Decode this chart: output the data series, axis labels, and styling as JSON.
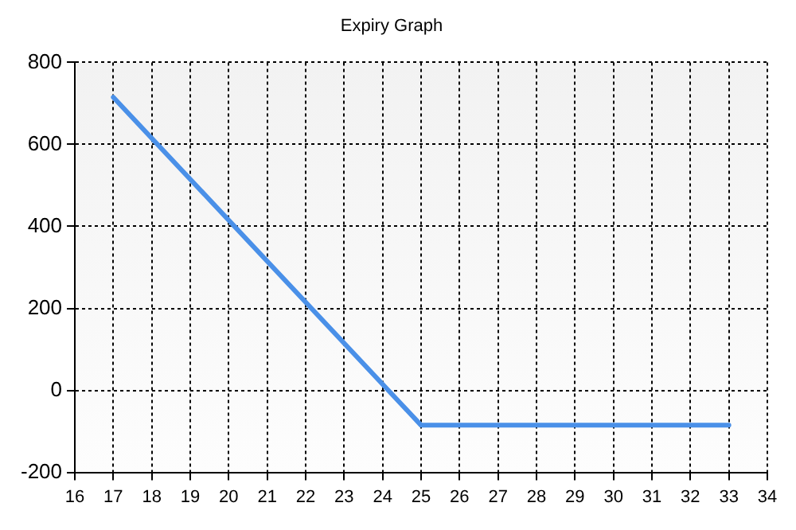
{
  "chart_data": {
    "type": "line",
    "title": "Expiry Graph",
    "x": [
      17,
      25,
      33
    ],
    "series": [
      {
        "color": "#4a90e8",
        "values": [
          715,
          -85,
          -85
        ]
      }
    ],
    "xlim": [
      16,
      34
    ],
    "xticks": [
      16,
      17,
      18,
      19,
      20,
      21,
      22,
      23,
      24,
      25,
      26,
      27,
      28,
      29,
      30,
      31,
      32,
      33,
      34
    ],
    "ylim": [
      -200,
      800
    ],
    "yticks": [
      -200,
      0,
      200,
      400,
      600,
      800
    ],
    "grid": true,
    "legend": false,
    "marker": "none",
    "line_style": "solid"
  }
}
